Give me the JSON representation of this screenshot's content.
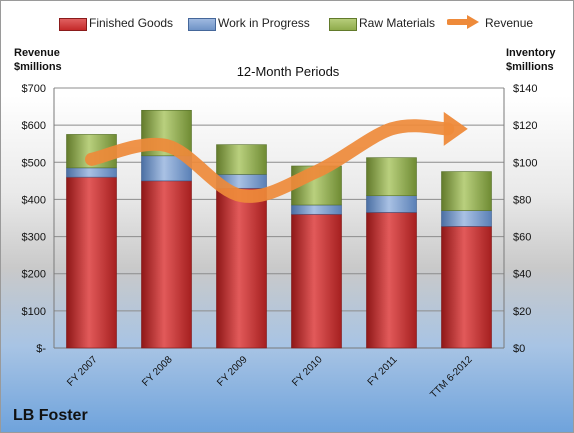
{
  "chart_data": {
    "type": "bar",
    "stacked": true,
    "title": "12-Month Periods",
    "categories": [
      "FY 2007",
      "FY 2008",
      "FY 2009",
      "FY 2010",
      "FY 2011",
      "TTM 6-2012"
    ],
    "y_left_label": "Revenue $millions",
    "y_left_ticks": [
      "$-",
      "$100",
      "$200",
      "$300",
      "$400",
      "$500",
      "$600",
      "$700"
    ],
    "y_left_range": [
      0,
      700
    ],
    "y_right_label": "Inventory $millions",
    "y_right_ticks": [
      "$0",
      "$20",
      "$40",
      "$60",
      "$80",
      "$100",
      "$120",
      "$140"
    ],
    "y_right_range": [
      0,
      140
    ],
    "grid": true,
    "legend_position": "top",
    "series": [
      {
        "name": "Finished Goods",
        "axis": "right",
        "color": "#c42a2a",
        "values": [
          92,
          90,
          86,
          72,
          73,
          65.5
        ]
      },
      {
        "name": "Work in Progress",
        "axis": "right",
        "color": "#6f93c6",
        "values": [
          5,
          13.5,
          7.5,
          5,
          9,
          8.5
        ]
      },
      {
        "name": "Raw Materials",
        "axis": "right",
        "color": "#8fab4c",
        "values": [
          18,
          24.5,
          16,
          21,
          20.5,
          21
        ]
      },
      {
        "name": "Revenue",
        "axis": "left",
        "type": "line",
        "color": "#ee8a3a",
        "values": [
          508,
          545,
          410,
          475,
          590,
          590
        ]
      }
    ],
    "annotation": "LB Foster"
  }
}
